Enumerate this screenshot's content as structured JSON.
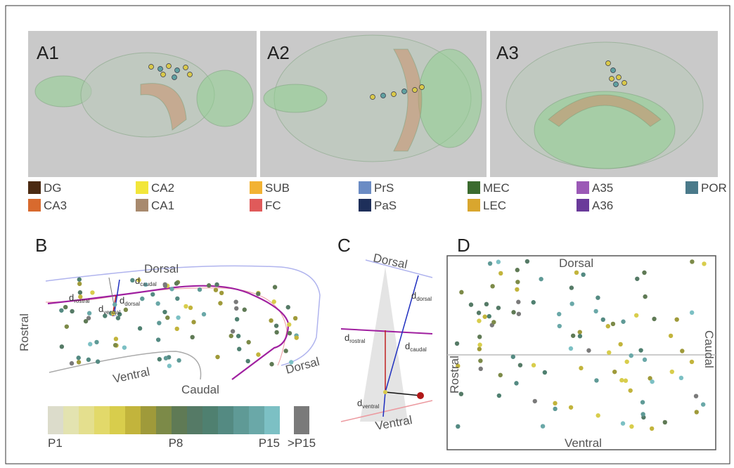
{
  "panel_a": {
    "labels": [
      "A1",
      "A2",
      "A3"
    ]
  },
  "legend": [
    {
      "label": "DG",
      "color": "#4b2a12"
    },
    {
      "label": "CA2",
      "color": "#f2e63a"
    },
    {
      "label": "SUB",
      "color": "#f2b233"
    },
    {
      "label": "PrS",
      "color": "#6b8cc4"
    },
    {
      "label": "MEC",
      "color": "#3b6b2e"
    },
    {
      "label": "A35",
      "color": "#9b59b6"
    },
    {
      "label": "POR",
      "color": "#4a7a8a"
    },
    {
      "label": "CA3",
      "color": "#d86a2e"
    },
    {
      "label": "CA1",
      "color": "#a88a6e"
    },
    {
      "label": "FC",
      "color": "#e05a5a"
    },
    {
      "label": "PaS",
      "color": "#1e2f5a"
    },
    {
      "label": "LEC",
      "color": "#d9a62e"
    },
    {
      "label": "A36",
      "color": "#6a3a9a"
    }
  ],
  "panel_b": {
    "label": "B",
    "dorsal": "Dorsal",
    "rostral": "Rostral",
    "ventral": "Ventral",
    "caudal": "Caudal",
    "dorsal_end": "Dorsal",
    "d_rostral": {
      "main": "d",
      "sub": "rostral"
    },
    "d_caudal": {
      "main": "d",
      "sub": "caudal"
    },
    "d_dorsal": {
      "main": "d",
      "sub": "dorsal"
    },
    "d_ventral": {
      "main": "d",
      "sub": "ventral"
    }
  },
  "colorbar": {
    "colors": [
      "#dcdccb",
      "#e3e3b0",
      "#e4df8e",
      "#e2d96a",
      "#d8cd4c",
      "#c2b43c",
      "#9f9a3a",
      "#7c8a48",
      "#5f7a55",
      "#557a66",
      "#4f8070",
      "#548a82",
      "#5f9a96",
      "#6aa8a8",
      "#7cc0c4"
    ],
    "over_color": "#7a7a7a",
    "labels": [
      "P1",
      "P8",
      "P15",
      ">P15"
    ]
  },
  "panel_c": {
    "label": "C",
    "dorsal": "Dorsal",
    "ventral": "Ventral",
    "d_dorsal": {
      "main": "d",
      "sub": "dorsal"
    },
    "d_rostral": {
      "main": "d",
      "sub": "rostral"
    },
    "d_caudal": {
      "main": "d",
      "sub": "caudal"
    },
    "d_ventral": {
      "main": "d",
      "sub": "ventral"
    }
  },
  "panel_d": {
    "label": "D",
    "dorsal": "Dorsal",
    "rostral": "Rostral",
    "caudal": "Caudal",
    "ventral": "Ventral"
  }
}
